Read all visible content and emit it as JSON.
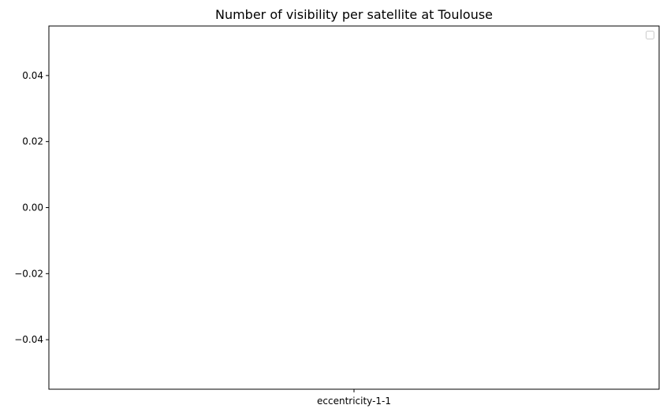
{
  "chart_data": {
    "type": "bar",
    "title": "Number of visibility per satellite at Toulouse",
    "xlabel": "",
    "ylabel": "",
    "categories": [
      "eccentricity-1-1"
    ],
    "series": [],
    "ylim": [
      -0.055,
      0.055
    ],
    "y_ticks": [
      0.04,
      0.02,
      0.0,
      -0.02,
      -0.04
    ],
    "y_tick_labels": [
      "0.04",
      "0.02",
      "0.00",
      "−0.02",
      "−0.04"
    ],
    "legend": {
      "placement": "top-right",
      "entries": []
    },
    "grid": false
  }
}
